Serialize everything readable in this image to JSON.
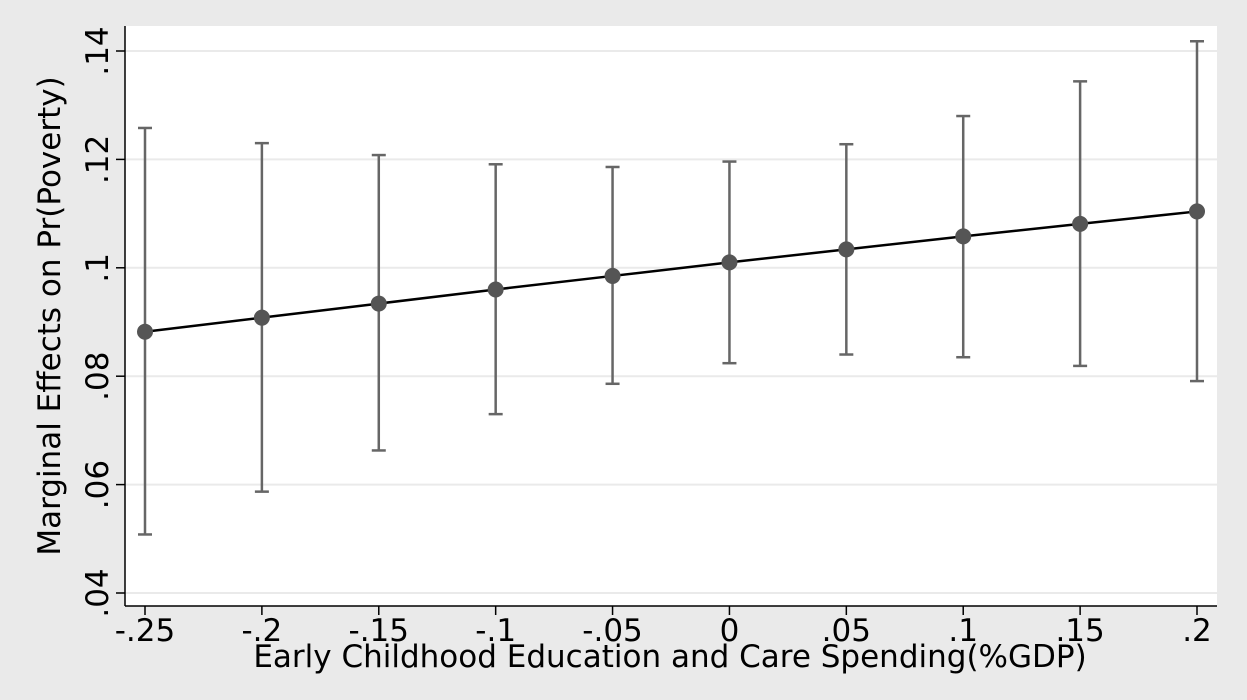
{
  "chart_data": {
    "type": "line",
    "title": "",
    "xlabel": "Early Childhood Education and Care Spending(%GDP)",
    "ylabel": "Marginal Effects on Pr(Poverty)",
    "xlim": [
      -0.25,
      0.2
    ],
    "ylim": [
      0.04,
      0.14
    ],
    "x_tick_labels": [
      "-.25",
      "-.2",
      "-.15",
      "-.1",
      "-.05",
      "0",
      ".05",
      ".1",
      ".15",
      ".2"
    ],
    "y_tick_labels": [
      ".04",
      ".06",
      ".08",
      ".1",
      ".12",
      ".14"
    ],
    "y_ticks": [
      0.04,
      0.06,
      0.08,
      0.1,
      0.12,
      0.14
    ],
    "grid": true,
    "legend": "none",
    "series": [
      {
        "x": [
          -0.25,
          -0.2,
          -0.15,
          -0.1,
          -0.05,
          0,
          0.05,
          0.1,
          0.15,
          0.2
        ],
        "y": [
          0.0882,
          0.0908,
          0.0934,
          0.096,
          0.0985,
          0.101,
          0.1034,
          0.1058,
          0.1081,
          0.1104
        ],
        "ci_low": [
          0.0508,
          0.0587,
          0.0663,
          0.073,
          0.0786,
          0.0824,
          0.084,
          0.0835,
          0.0819,
          0.0791
        ],
        "ci_high": [
          0.1258,
          0.123,
          0.1208,
          0.1191,
          0.1186,
          0.1196,
          0.1228,
          0.128,
          0.1344,
          0.1418
        ]
      }
    ],
    "colors": {
      "background": "#eaeaea",
      "plot_background": "#ffffff",
      "grid": "#eaeaea",
      "line": "#000000",
      "marker": "#555555",
      "error_bar": "#666666"
    }
  }
}
